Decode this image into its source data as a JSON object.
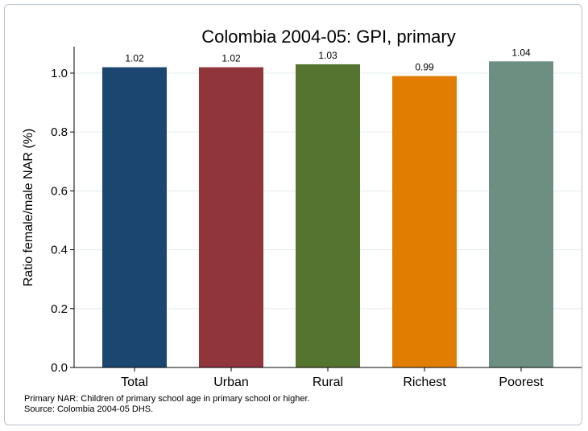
{
  "chart_data": {
    "type": "bar",
    "title": "Colombia 2004-05: GPI, primary",
    "xlabel": "",
    "ylabel": "Ratio female/male NAR (%)",
    "categories": [
      "Total",
      "Urban",
      "Rural",
      "Richest",
      "Poorest"
    ],
    "values": [
      1.02,
      1.02,
      1.03,
      0.99,
      1.04
    ],
    "value_labels": [
      "1.02",
      "1.02",
      "1.03",
      "0.99",
      "1.04"
    ],
    "colors": [
      "#1b4670",
      "#90353b",
      "#55742f",
      "#e17d00",
      "#6d8f82"
    ],
    "ylim": [
      0,
      1.09
    ],
    "yticks": [
      0.0,
      0.2,
      0.4,
      0.6,
      0.8,
      1.0
    ],
    "ytick_labels": [
      "0.0",
      "0.2",
      "0.4",
      "0.6",
      "0.8",
      "1.0"
    ],
    "grid": true,
    "legend": "none"
  },
  "notes": {
    "line1": "Primary NAR: Children of primary school age in primary school or higher.",
    "line2": "Source: Colombia 2004-05 DHS."
  }
}
